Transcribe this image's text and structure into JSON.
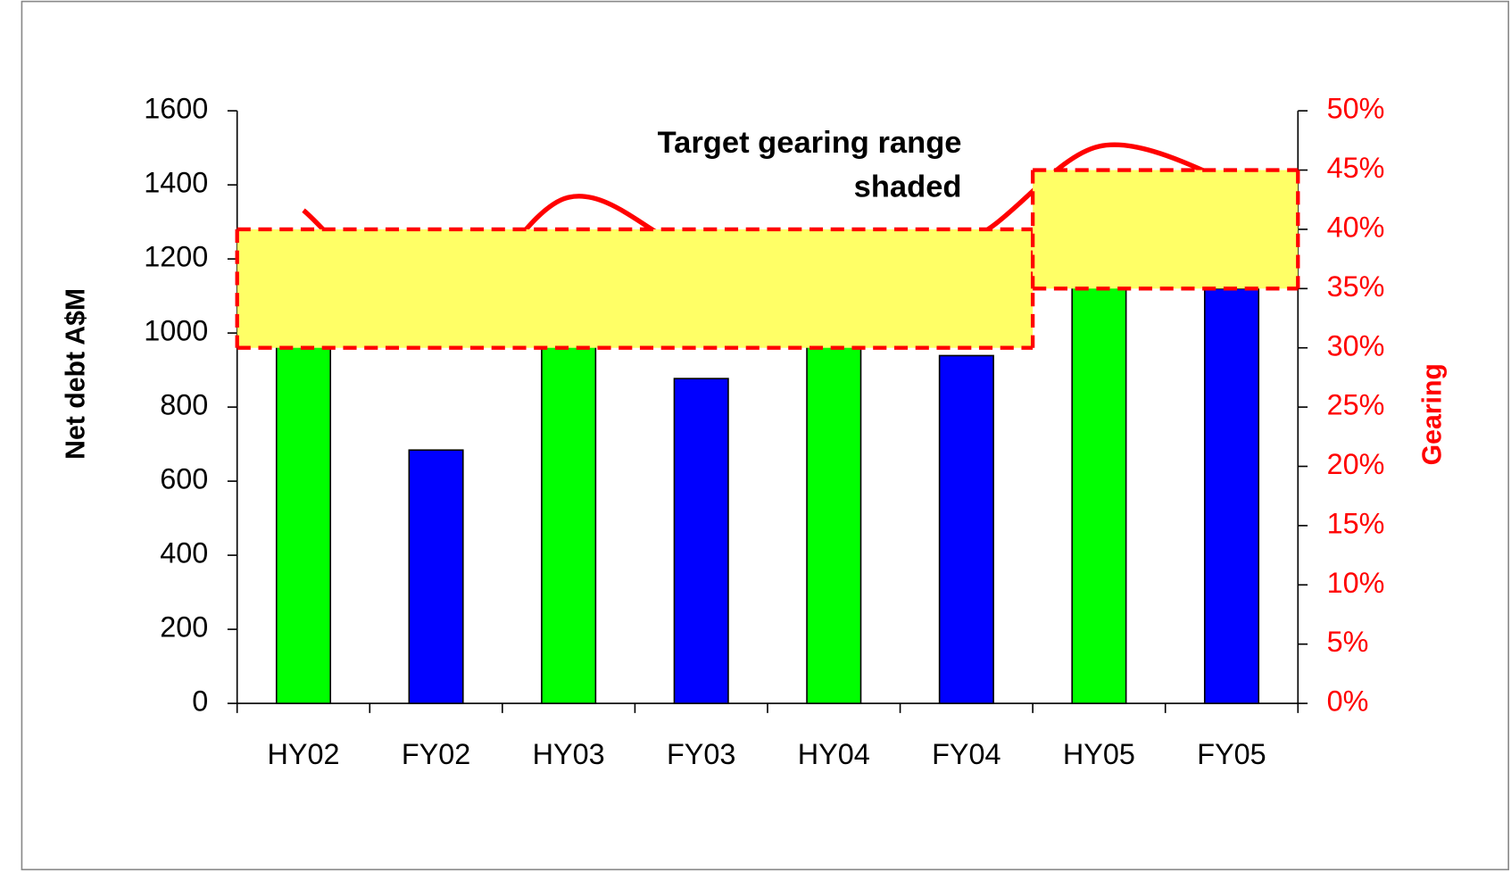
{
  "chart_data": {
    "type": "bar",
    "categories": [
      "HY02",
      "FY02",
      "HY03",
      "FY03",
      "HY04",
      "FY04",
      "HY05",
      "FY05"
    ],
    "values": [
      1000,
      684,
      1050,
      877,
      1000,
      939,
      1150,
      1120
    ],
    "colors": [
      "#00ff00",
      "#0000ff",
      "#00ff00",
      "#0000ff",
      "#00ff00",
      "#0000ff",
      "#00ff00",
      "#0000ff"
    ],
    "line": {
      "values": [
        41.6,
        33,
        42.7,
        38,
        38.5,
        39,
        47,
        44
      ],
      "color": "#ff0000",
      "axis": "y2"
    },
    "target_ranges": [
      {
        "start": "HY02",
        "end": "FY04",
        "low": 30,
        "high": 40
      },
      {
        "start": "HY05",
        "end": "FY05",
        "low": 35,
        "high": 45
      }
    ],
    "band_color": "#ffff66",
    "annotation": [
      "Target gearing range",
      "shaded"
    ],
    "ylabel": "Net debt A$M",
    "y2label": "Gearing",
    "ylim": [
      0,
      1600
    ],
    "yticks": [
      0,
      200,
      400,
      600,
      800,
      1000,
      1200,
      1400,
      1600
    ],
    "y2lim": [
      0,
      50
    ],
    "y2ticks": [
      {
        "value": 0,
        "label": "0%"
      },
      {
        "value": 5,
        "label": "5%"
      },
      {
        "value": 10,
        "label": "10%"
      },
      {
        "value": 15,
        "label": "15%"
      },
      {
        "value": 20,
        "label": "20%"
      },
      {
        "value": 25,
        "label": "25%"
      },
      {
        "value": 30,
        "label": "30%"
      },
      {
        "value": 35,
        "label": "35%"
      },
      {
        "value": 40,
        "label": "40%"
      },
      {
        "value": 45,
        "label": "45%"
      },
      {
        "value": 50,
        "label": "50%"
      }
    ],
    "y2color": "#ff0000"
  }
}
